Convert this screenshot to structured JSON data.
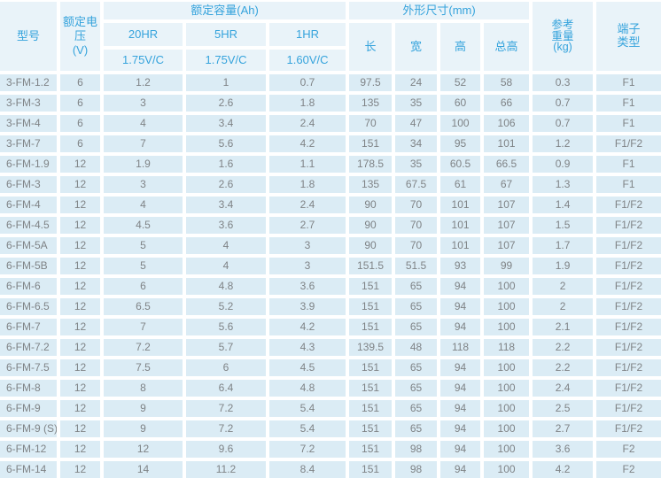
{
  "colors": {
    "accent-blue": "#35a3dc",
    "header-bg": "#e9f3f9",
    "row-bg": "#dbecf5",
    "text-gray": "#7f8386",
    "gap-white": "#ffffff"
  },
  "table": {
    "header": {
      "model": "型号",
      "voltage": "额定电压\n(V)",
      "capacity_group": "额定容量(Ah)",
      "capacity_cols": [
        {
          "rate": "20HR",
          "cutoff": "1.75V/C"
        },
        {
          "rate": "5HR",
          "cutoff": "1.75V/C"
        },
        {
          "rate": "1HR",
          "cutoff": "1.60V/C"
        }
      ],
      "dimensions_group": "外形尺寸(mm)",
      "dimension_cols": [
        "长",
        "宽",
        "高",
        "总高"
      ],
      "weight": "参考\n重量\n(kg)",
      "terminal": "端子\n类型"
    },
    "column_keys": [
      "model",
      "voltage",
      "capacity-20hr",
      "capacity-5hr",
      "capacity-1hr",
      "length",
      "width",
      "height",
      "total-height",
      "weight",
      "terminal-type"
    ],
    "rows": [
      [
        "3-FM-1.2",
        "6",
        "1.2",
        "1",
        "0.7",
        "97.5",
        "24",
        "52",
        "58",
        "0.3",
        "F1"
      ],
      [
        "3-FM-3",
        "6",
        "3",
        "2.6",
        "1.8",
        "135",
        "35",
        "60",
        "66",
        "0.7",
        "F1"
      ],
      [
        "3-FM-4",
        "6",
        "4",
        "3.4",
        "2.4",
        "70",
        "47",
        "100",
        "106",
        "0.7",
        "F1"
      ],
      [
        "3-FM-7",
        "6",
        "7",
        "5.6",
        "4.2",
        "151",
        "34",
        "95",
        "101",
        "1.2",
        "F1/F2"
      ],
      [
        "6-FM-1.9",
        "12",
        "1.9",
        "1.6",
        "1.1",
        "178.5",
        "35",
        "60.5",
        "66.5",
        "0.9",
        "F1"
      ],
      [
        "6-FM-3",
        "12",
        "3",
        "2.6",
        "1.8",
        "135",
        "67.5",
        "61",
        "67",
        "1.3",
        "F1"
      ],
      [
        "6-FM-4",
        "12",
        "4",
        "3.4",
        "2.4",
        "90",
        "70",
        "101",
        "107",
        "1.4",
        "F1/F2"
      ],
      [
        "6-FM-4.5",
        "12",
        "4.5",
        "3.6",
        "2.7",
        "90",
        "70",
        "101",
        "107",
        "1.5",
        "F1/F2"
      ],
      [
        "6-FM-5A",
        "12",
        "5",
        "4",
        "3",
        "90",
        "70",
        "101",
        "107",
        "1.7",
        "F1/F2"
      ],
      [
        "6-FM-5B",
        "12",
        "5",
        "4",
        "3",
        "151.5",
        "51.5",
        "93",
        "99",
        "1.9",
        "F1/F2"
      ],
      [
        "6-FM-6",
        "12",
        "6",
        "4.8",
        "3.6",
        "151",
        "65",
        "94",
        "100",
        "2",
        "F1/F2"
      ],
      [
        "6-FM-6.5",
        "12",
        "6.5",
        "5.2",
        "3.9",
        "151",
        "65",
        "94",
        "100",
        "2",
        "F1/F2"
      ],
      [
        "6-FM-7",
        "12",
        "7",
        "5.6",
        "4.2",
        "151",
        "65",
        "94",
        "100",
        "2.1",
        "F1/F2"
      ],
      [
        "6-FM-7.2",
        "12",
        "7.2",
        "5.7",
        "4.3",
        "139.5",
        "48",
        "118",
        "118",
        "2.2",
        "F1/F2"
      ],
      [
        "6-FM-7.5",
        "12",
        "7.5",
        "6",
        "4.5",
        "151",
        "65",
        "94",
        "100",
        "2.2",
        "F1/F2"
      ],
      [
        "6-FM-8",
        "12",
        "8",
        "6.4",
        "4.8",
        "151",
        "65",
        "94",
        "100",
        "2.4",
        "F1/F2"
      ],
      [
        "6-FM-9",
        "12",
        "9",
        "7.2",
        "5.4",
        "151",
        "65",
        "94",
        "100",
        "2.5",
        "F1/F2"
      ],
      [
        "6-FM-9 (S)",
        "12",
        "9",
        "7.2",
        "5.4",
        "151",
        "65",
        "94",
        "100",
        "2.7",
        "F1/F2"
      ],
      [
        "6-FM-12",
        "12",
        "12",
        "9.6",
        "7.2",
        "151",
        "98",
        "94",
        "100",
        "3.6",
        "F2"
      ],
      [
        "6-FM-14",
        "12",
        "14",
        "11.2",
        "8.4",
        "151",
        "98",
        "94",
        "100",
        "4.2",
        "F2"
      ]
    ]
  }
}
